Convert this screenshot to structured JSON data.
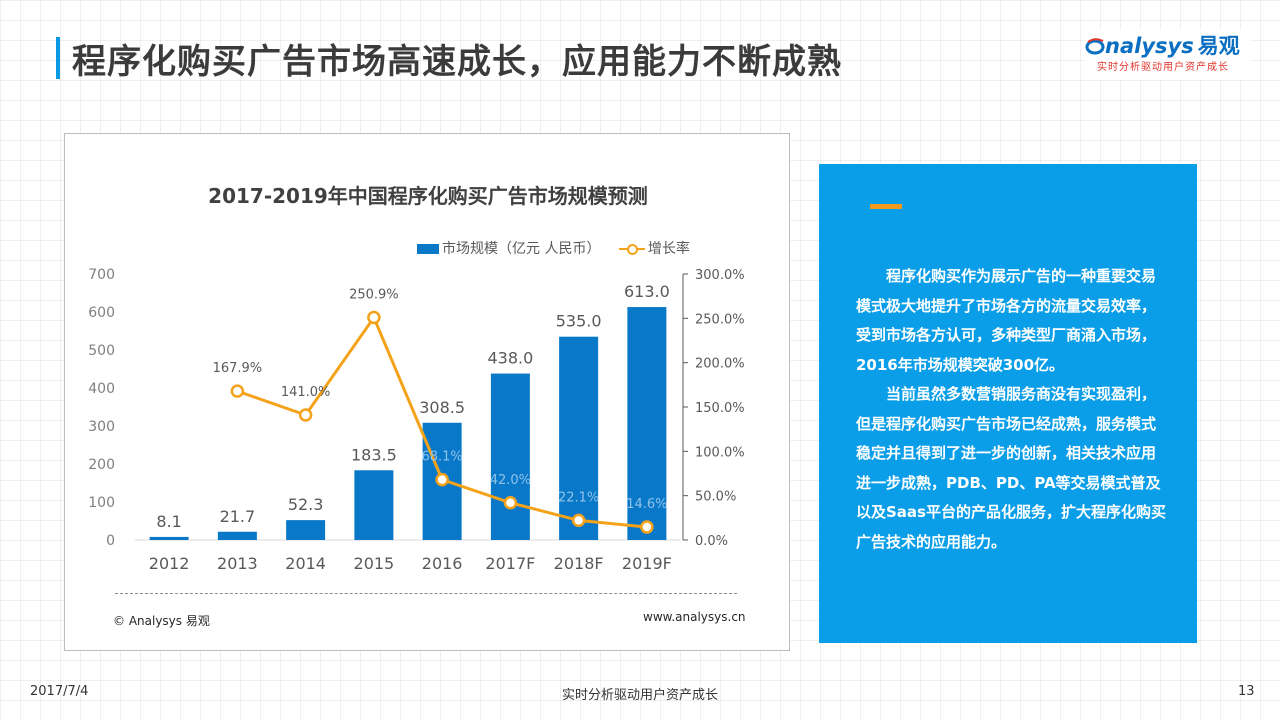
{
  "slide": {
    "title": "程序化购买广告市场高速成长，应用能力不断成熟",
    "logo_text": "nalysys",
    "logo_cn": "易观",
    "logo_tagline": "实时分析驱动用户资产成长",
    "footer_date": "2017/7/4",
    "footer_slogan": "实时分析驱动用户资产成长",
    "page_number": "13",
    "accent_color": "#0a9ae3"
  },
  "chart_data": {
    "type": "bar",
    "title": "2017-2019年中国程序化购买广告市场规模预测",
    "categories": [
      "2012",
      "2013",
      "2014",
      "2015",
      "2016",
      "2017F",
      "2018F",
      "2019F"
    ],
    "series": [
      {
        "name": "市场规模（亿元 人民币）",
        "type": "bar",
        "axis": "left",
        "color": "#0a78c8",
        "values": [
          8.1,
          21.7,
          52.3,
          183.5,
          308.5,
          438.0,
          535.0,
          613.0
        ],
        "labels": [
          "8.1",
          "21.7",
          "52.3",
          "183.5",
          "308.5",
          "438.0",
          "535.0",
          "613.0"
        ]
      },
      {
        "name": "增长率",
        "type": "line",
        "axis": "right",
        "color": "#f5a21b",
        "values": [
          null,
          167.9,
          141.0,
          250.9,
          68.1,
          42.0,
          22.1,
          14.6
        ],
        "labels": [
          "",
          "167.9%",
          "141.0%",
          "250.9%",
          "68.1%",
          "42.0%",
          "22.1%",
          "14.6%"
        ]
      }
    ],
    "y_left": {
      "min": 0,
      "max": 700,
      "ticks": [
        "0",
        "100",
        "200",
        "300",
        "400",
        "500",
        "600",
        "700"
      ]
    },
    "y_right": {
      "min": 0,
      "max": 300,
      "ticks": [
        "0.0%",
        "50.0%",
        "100.0%",
        "150.0%",
        "200.0%",
        "250.0%",
        "300.0%"
      ]
    },
    "grid": false,
    "legend_position": "top-right",
    "source": "© Analysys 易观",
    "website": "www.analysys.cn"
  },
  "panel": {
    "paragraphs": [
      "程序化购买作为展示广告的一种重要交易模式极大地提升了市场各方的流量交易效率，受到市场各方认可，多种类型厂商涌入市场，2016年市场规模突破300亿。",
      "当前虽然多数营销服务商没有实现盈利，但是程序化购买广告市场已经成熟，服务模式稳定并且得到了进一步的创新，相关技术应用进一步成熟，PDB、PD、PA等交易模式普及以及Saas平台的产品化服务，扩大程序化购买广告技术的应用能力。"
    ],
    "background_color": "#0a9ee8",
    "accent_color": "#f39a1e"
  }
}
